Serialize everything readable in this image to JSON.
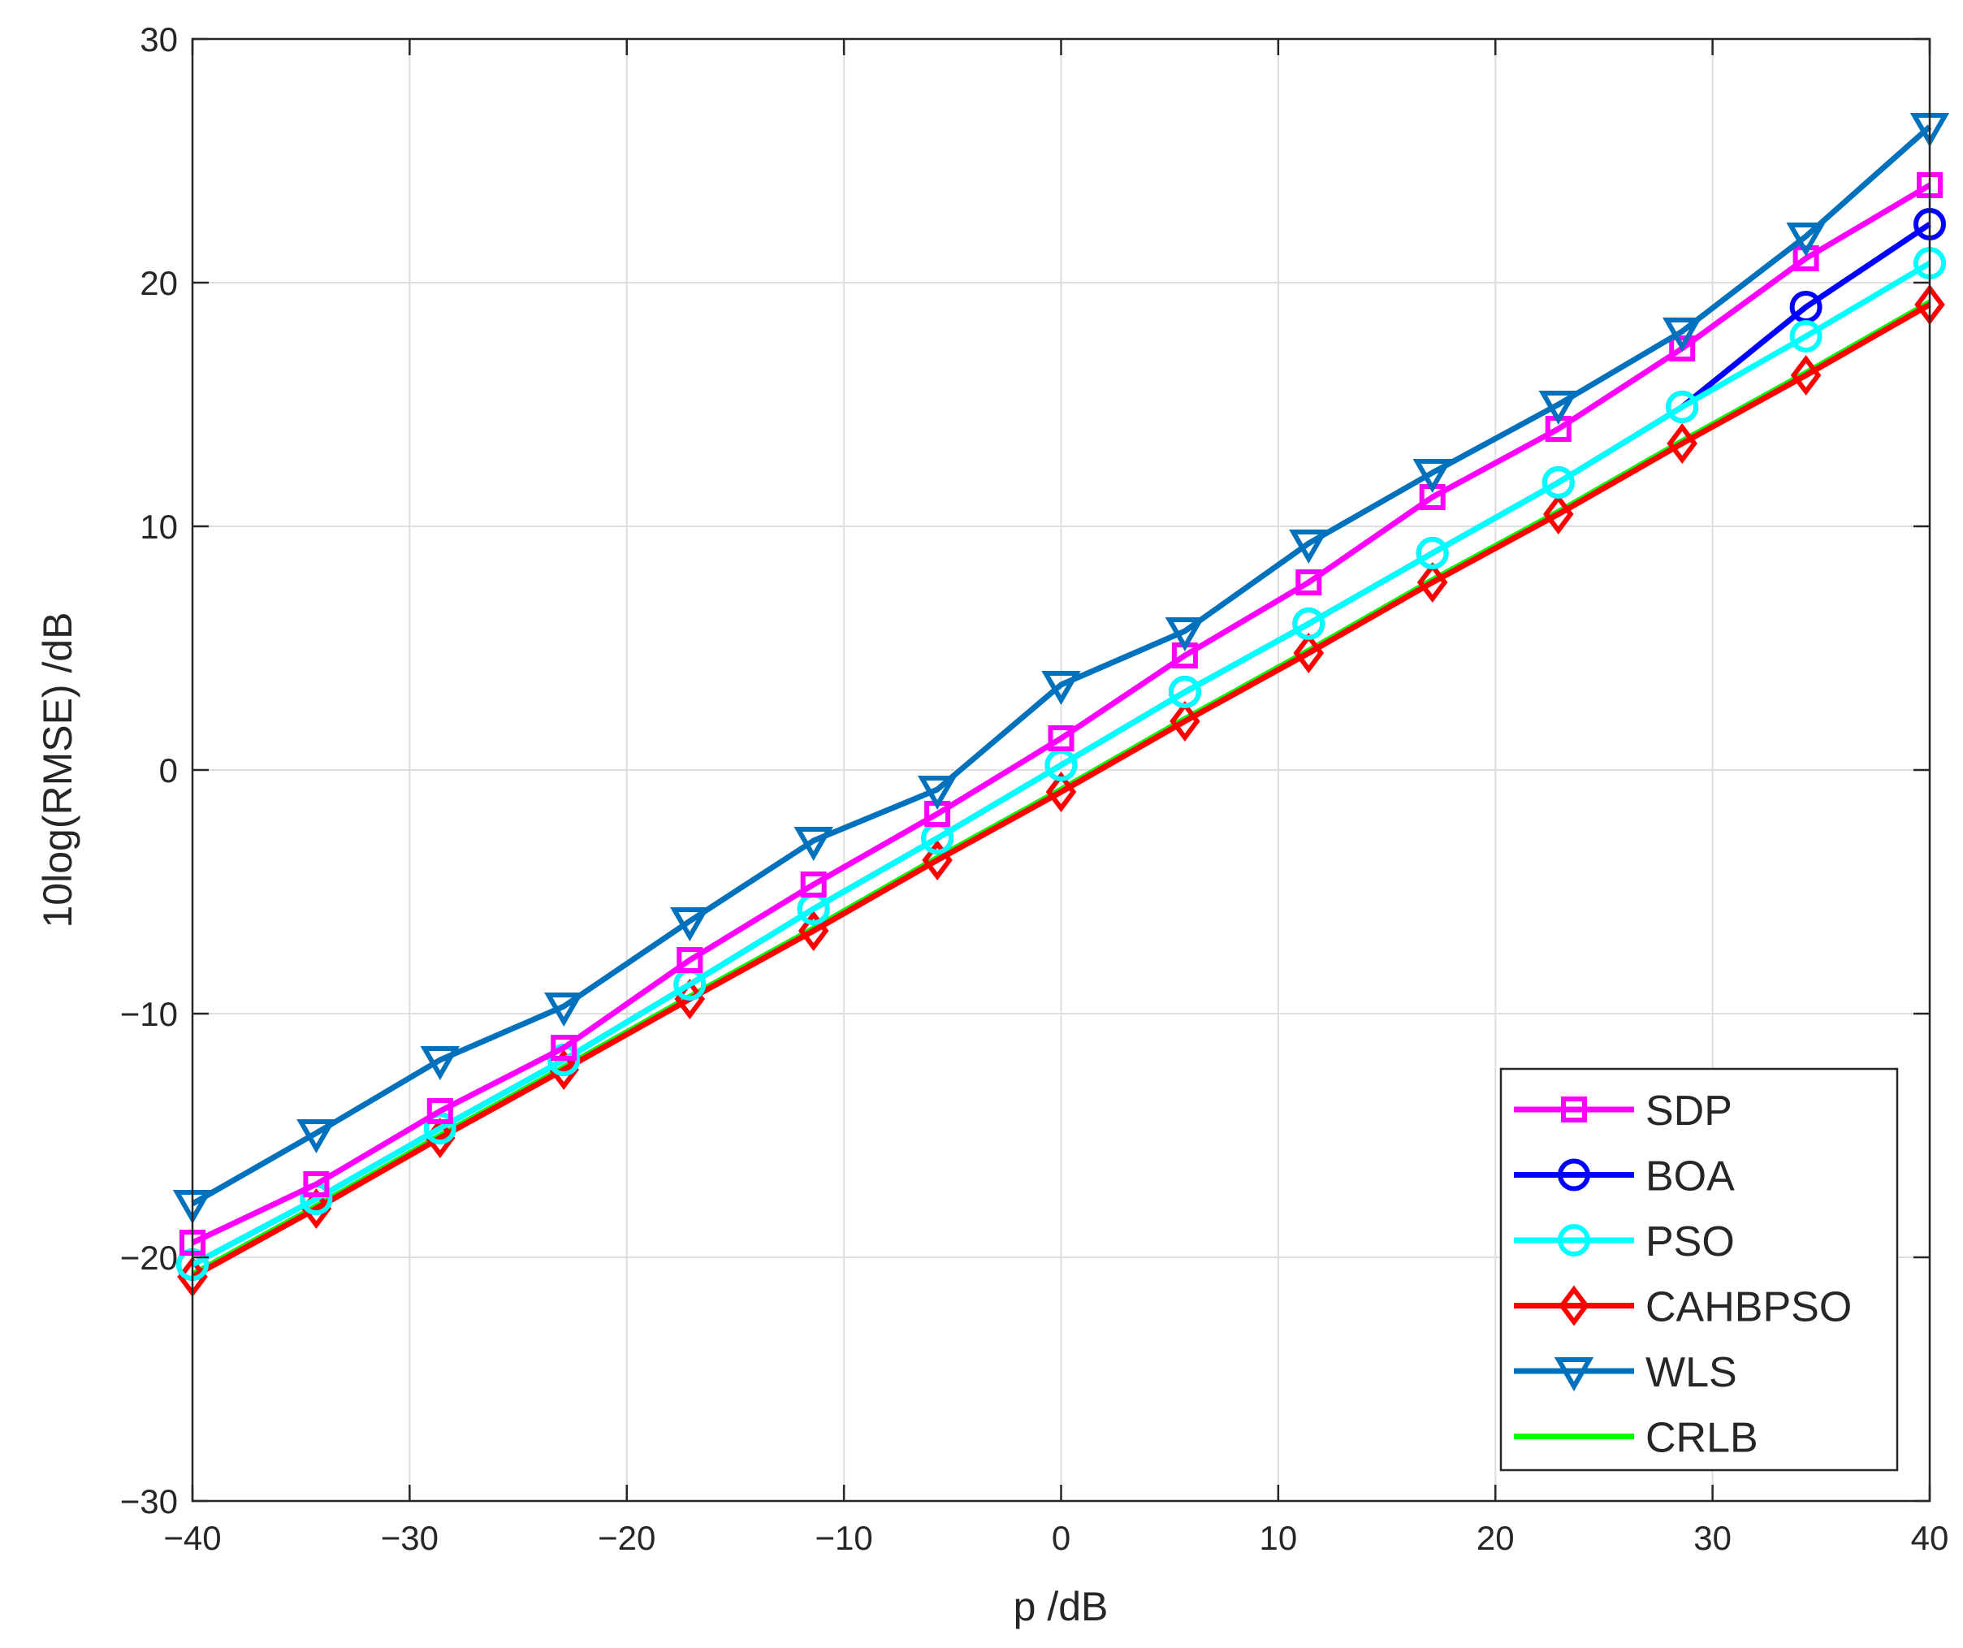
{
  "chart_data": {
    "type": "line",
    "title": "",
    "xlabel": "p /dB",
    "ylabel": "10log(RMSE) /dB",
    "xlim": [
      -40,
      40
    ],
    "ylim": [
      -30,
      30
    ],
    "xticks": [
      -40,
      -30,
      -20,
      -10,
      0,
      10,
      20,
      30,
      40
    ],
    "yticks": [
      -30,
      -20,
      -10,
      0,
      10,
      20,
      30
    ],
    "xtick_labels": [
      "−40",
      "−30",
      "−20",
      "−10",
      "0",
      "10",
      "20",
      "30",
      "40"
    ],
    "ytick_labels": [
      "−30",
      "−20",
      "−10",
      "0",
      "10",
      "20",
      "30"
    ],
    "grid": true,
    "legend_position": "bottom-right",
    "x": [
      -40,
      -34.3,
      -28.6,
      -22.9,
      -17.1,
      -11.4,
      -5.7,
      0,
      5.7,
      11.4,
      17.1,
      22.9,
      28.6,
      34.3,
      40
    ],
    "series": [
      {
        "name": "SDP",
        "color": "#ff00ff",
        "marker": "square",
        "values": [
          -19.4,
          -17.0,
          -14.0,
          -11.4,
          -7.8,
          -4.7,
          -1.8,
          1.3,
          4.7,
          7.7,
          11.2,
          14.0,
          17.3,
          21.0,
          24.0
        ]
      },
      {
        "name": "BOA",
        "color": "#0000ff",
        "marker": "circle",
        "values": [
          -20.3,
          -17.6,
          -14.7,
          -11.9,
          -8.8,
          -5.7,
          -2.8,
          0.2,
          3.2,
          6.0,
          8.9,
          11.8,
          14.9,
          19.0,
          22.4
        ]
      },
      {
        "name": "PSO",
        "color": "#00ffff",
        "marker": "circle",
        "values": [
          -20.3,
          -17.6,
          -14.7,
          -11.9,
          -8.8,
          -5.7,
          -2.8,
          0.2,
          3.2,
          6.0,
          8.9,
          11.8,
          14.9,
          17.8,
          20.8
        ]
      },
      {
        "name": "CAHBPSO",
        "color": "#ff0000",
        "marker": "diamond",
        "values": [
          -20.8,
          -18.0,
          -15.1,
          -12.3,
          -9.4,
          -6.6,
          -3.7,
          -0.9,
          2.0,
          4.8,
          7.7,
          10.5,
          13.4,
          16.2,
          19.1
        ]
      },
      {
        "name": "WLS",
        "color": "#0072bd",
        "marker": "triangle-down",
        "values": [
          -17.8,
          -14.9,
          -11.9,
          -9.7,
          -6.2,
          -2.9,
          -0.8,
          3.5,
          5.7,
          9.3,
          12.2,
          15.0,
          18.0,
          21.9,
          26.4
        ]
      },
      {
        "name": "CRLB",
        "color": "#00ff00",
        "marker": "none",
        "values": [
          -20.7,
          -17.9,
          -15.0,
          -12.2,
          -9.3,
          -6.5,
          -3.6,
          -0.8,
          2.1,
          4.9,
          7.8,
          10.6,
          13.5,
          16.3,
          19.2
        ]
      }
    ]
  }
}
